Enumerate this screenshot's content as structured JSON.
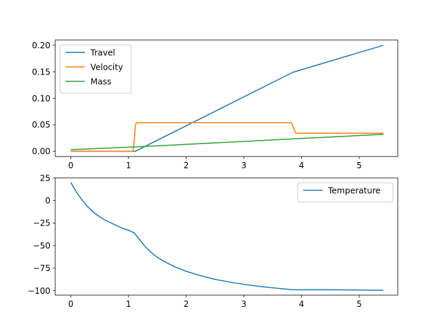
{
  "chart_data": [
    {
      "type": "line",
      "xlim": [
        -0.27,
        5.67
      ],
      "ylim": [
        -0.01,
        0.21
      ],
      "x_ticks": [
        0,
        1,
        2,
        3,
        4,
        5
      ],
      "y_ticks": [
        0.0,
        0.05,
        0.1,
        0.15,
        0.2
      ],
      "y_tick_decimals": 2,
      "legend": "top-left",
      "series": [
        {
          "name": "Travel",
          "color": "#1f77b4",
          "points": [
            [
              0,
              0
            ],
            [
              1.1,
              0
            ],
            [
              1.12,
              0.0
            ],
            [
              3.85,
              0.149
            ],
            [
              5.42,
              0.2
            ]
          ]
        },
        {
          "name": "Velocity",
          "color": "#ff7f0e",
          "points": [
            [
              0,
              0
            ],
            [
              1.08,
              0
            ],
            [
              1.1,
              0.02
            ],
            [
              1.12,
              0.05
            ],
            [
              1.15,
              0.054
            ],
            [
              3.82,
              0.054
            ],
            [
              3.86,
              0.045
            ],
            [
              3.9,
              0.034
            ],
            [
              5.42,
              0.034
            ]
          ]
        },
        {
          "name": "Mass",
          "color": "#2ca02c",
          "points": [
            [
              0,
              0.003
            ],
            [
              1.1,
              0.008
            ],
            [
              5.42,
              0.032
            ]
          ]
        }
      ]
    },
    {
      "type": "line",
      "xlim": [
        -0.27,
        5.67
      ],
      "ylim": [
        -105,
        25
      ],
      "x_ticks": [
        0,
        1,
        2,
        3,
        4,
        5
      ],
      "y_ticks": [
        25,
        0,
        -25,
        -50,
        -75,
        -100
      ],
      "y_tick_decimals": 0,
      "legend": "top-right",
      "series": [
        {
          "name": "Temperature",
          "color": "#1f77b4",
          "points": [
            [
              0,
              20
            ],
            [
              0.1,
              9
            ],
            [
              0.2,
              0
            ],
            [
              0.3,
              -7.5
            ],
            [
              0.4,
              -13.5
            ],
            [
              0.5,
              -18
            ],
            [
              0.6,
              -22
            ],
            [
              0.7,
              -25
            ],
            [
              0.8,
              -28
            ],
            [
              0.9,
              -31
            ],
            [
              1.0,
              -33
            ],
            [
              1.1,
              -36
            ],
            [
              1.2,
              -44
            ],
            [
              1.3,
              -52
            ],
            [
              1.4,
              -58
            ],
            [
              1.5,
              -63
            ],
            [
              1.6,
              -67
            ],
            [
              1.8,
              -73.5
            ],
            [
              2.0,
              -78.5
            ],
            [
              2.2,
              -82.5
            ],
            [
              2.5,
              -87.5
            ],
            [
              2.8,
              -91
            ],
            [
              3.0,
              -93
            ],
            [
              3.3,
              -95.5
            ],
            [
              3.6,
              -97.5
            ],
            [
              3.85,
              -99
            ],
            [
              4.5,
              -99
            ],
            [
              5.0,
              -99.3
            ],
            [
              5.42,
              -99.6
            ]
          ]
        }
      ]
    }
  ]
}
